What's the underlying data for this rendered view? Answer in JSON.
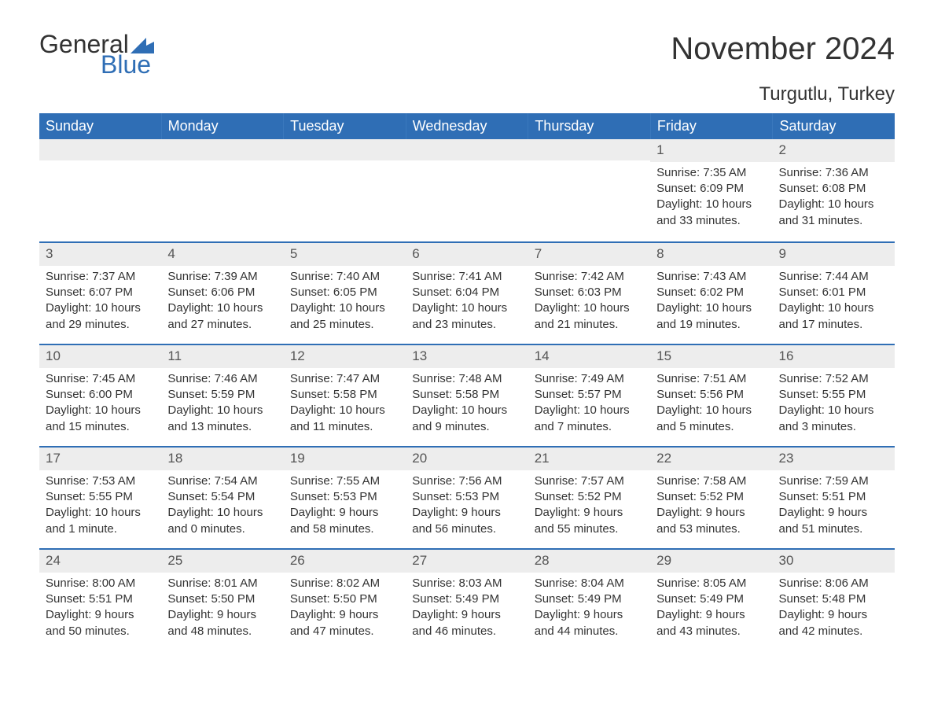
{
  "brand": {
    "part1": "General",
    "part2": "Blue"
  },
  "title": "November 2024",
  "location": "Turgutlu, Turkey",
  "colors": {
    "accent": "#2f6eb5",
    "band": "#ededed",
    "text": "#333333",
    "white": "#ffffff"
  },
  "dayHeaders": [
    "Sunday",
    "Monday",
    "Tuesday",
    "Wednesday",
    "Thursday",
    "Friday",
    "Saturday"
  ],
  "weeks": [
    [
      {
        "empty": true
      },
      {
        "empty": true
      },
      {
        "empty": true
      },
      {
        "empty": true
      },
      {
        "empty": true
      },
      {
        "num": "1",
        "sunrise": "Sunrise: 7:35 AM",
        "sunset": "Sunset: 6:09 PM",
        "day1": "Daylight: 10 hours",
        "day2": "and 33 minutes."
      },
      {
        "num": "2",
        "sunrise": "Sunrise: 7:36 AM",
        "sunset": "Sunset: 6:08 PM",
        "day1": "Daylight: 10 hours",
        "day2": "and 31 minutes."
      }
    ],
    [
      {
        "num": "3",
        "sunrise": "Sunrise: 7:37 AM",
        "sunset": "Sunset: 6:07 PM",
        "day1": "Daylight: 10 hours",
        "day2": "and 29 minutes."
      },
      {
        "num": "4",
        "sunrise": "Sunrise: 7:39 AM",
        "sunset": "Sunset: 6:06 PM",
        "day1": "Daylight: 10 hours",
        "day2": "and 27 minutes."
      },
      {
        "num": "5",
        "sunrise": "Sunrise: 7:40 AM",
        "sunset": "Sunset: 6:05 PM",
        "day1": "Daylight: 10 hours",
        "day2": "and 25 minutes."
      },
      {
        "num": "6",
        "sunrise": "Sunrise: 7:41 AM",
        "sunset": "Sunset: 6:04 PM",
        "day1": "Daylight: 10 hours",
        "day2": "and 23 minutes."
      },
      {
        "num": "7",
        "sunrise": "Sunrise: 7:42 AM",
        "sunset": "Sunset: 6:03 PM",
        "day1": "Daylight: 10 hours",
        "day2": "and 21 minutes."
      },
      {
        "num": "8",
        "sunrise": "Sunrise: 7:43 AM",
        "sunset": "Sunset: 6:02 PM",
        "day1": "Daylight: 10 hours",
        "day2": "and 19 minutes."
      },
      {
        "num": "9",
        "sunrise": "Sunrise: 7:44 AM",
        "sunset": "Sunset: 6:01 PM",
        "day1": "Daylight: 10 hours",
        "day2": "and 17 minutes."
      }
    ],
    [
      {
        "num": "10",
        "sunrise": "Sunrise: 7:45 AM",
        "sunset": "Sunset: 6:00 PM",
        "day1": "Daylight: 10 hours",
        "day2": "and 15 minutes."
      },
      {
        "num": "11",
        "sunrise": "Sunrise: 7:46 AM",
        "sunset": "Sunset: 5:59 PM",
        "day1": "Daylight: 10 hours",
        "day2": "and 13 minutes."
      },
      {
        "num": "12",
        "sunrise": "Sunrise: 7:47 AM",
        "sunset": "Sunset: 5:58 PM",
        "day1": "Daylight: 10 hours",
        "day2": "and 11 minutes."
      },
      {
        "num": "13",
        "sunrise": "Sunrise: 7:48 AM",
        "sunset": "Sunset: 5:58 PM",
        "day1": "Daylight: 10 hours",
        "day2": "and 9 minutes."
      },
      {
        "num": "14",
        "sunrise": "Sunrise: 7:49 AM",
        "sunset": "Sunset: 5:57 PM",
        "day1": "Daylight: 10 hours",
        "day2": "and 7 minutes."
      },
      {
        "num": "15",
        "sunrise": "Sunrise: 7:51 AM",
        "sunset": "Sunset: 5:56 PM",
        "day1": "Daylight: 10 hours",
        "day2": "and 5 minutes."
      },
      {
        "num": "16",
        "sunrise": "Sunrise: 7:52 AM",
        "sunset": "Sunset: 5:55 PM",
        "day1": "Daylight: 10 hours",
        "day2": "and 3 minutes."
      }
    ],
    [
      {
        "num": "17",
        "sunrise": "Sunrise: 7:53 AM",
        "sunset": "Sunset: 5:55 PM",
        "day1": "Daylight: 10 hours",
        "day2": "and 1 minute."
      },
      {
        "num": "18",
        "sunrise": "Sunrise: 7:54 AM",
        "sunset": "Sunset: 5:54 PM",
        "day1": "Daylight: 10 hours",
        "day2": "and 0 minutes."
      },
      {
        "num": "19",
        "sunrise": "Sunrise: 7:55 AM",
        "sunset": "Sunset: 5:53 PM",
        "day1": "Daylight: 9 hours",
        "day2": "and 58 minutes."
      },
      {
        "num": "20",
        "sunrise": "Sunrise: 7:56 AM",
        "sunset": "Sunset: 5:53 PM",
        "day1": "Daylight: 9 hours",
        "day2": "and 56 minutes."
      },
      {
        "num": "21",
        "sunrise": "Sunrise: 7:57 AM",
        "sunset": "Sunset: 5:52 PM",
        "day1": "Daylight: 9 hours",
        "day2": "and 55 minutes."
      },
      {
        "num": "22",
        "sunrise": "Sunrise: 7:58 AM",
        "sunset": "Sunset: 5:52 PM",
        "day1": "Daylight: 9 hours",
        "day2": "and 53 minutes."
      },
      {
        "num": "23",
        "sunrise": "Sunrise: 7:59 AM",
        "sunset": "Sunset: 5:51 PM",
        "day1": "Daylight: 9 hours",
        "day2": "and 51 minutes."
      }
    ],
    [
      {
        "num": "24",
        "sunrise": "Sunrise: 8:00 AM",
        "sunset": "Sunset: 5:51 PM",
        "day1": "Daylight: 9 hours",
        "day2": "and 50 minutes."
      },
      {
        "num": "25",
        "sunrise": "Sunrise: 8:01 AM",
        "sunset": "Sunset: 5:50 PM",
        "day1": "Daylight: 9 hours",
        "day2": "and 48 minutes."
      },
      {
        "num": "26",
        "sunrise": "Sunrise: 8:02 AM",
        "sunset": "Sunset: 5:50 PM",
        "day1": "Daylight: 9 hours",
        "day2": "and 47 minutes."
      },
      {
        "num": "27",
        "sunrise": "Sunrise: 8:03 AM",
        "sunset": "Sunset: 5:49 PM",
        "day1": "Daylight: 9 hours",
        "day2": "and 46 minutes."
      },
      {
        "num": "28",
        "sunrise": "Sunrise: 8:04 AM",
        "sunset": "Sunset: 5:49 PM",
        "day1": "Daylight: 9 hours",
        "day2": "and 44 minutes."
      },
      {
        "num": "29",
        "sunrise": "Sunrise: 8:05 AM",
        "sunset": "Sunset: 5:49 PM",
        "day1": "Daylight: 9 hours",
        "day2": "and 43 minutes."
      },
      {
        "num": "30",
        "sunrise": "Sunrise: 8:06 AM",
        "sunset": "Sunset: 5:48 PM",
        "day1": "Daylight: 9 hours",
        "day2": "and 42 minutes."
      }
    ]
  ]
}
